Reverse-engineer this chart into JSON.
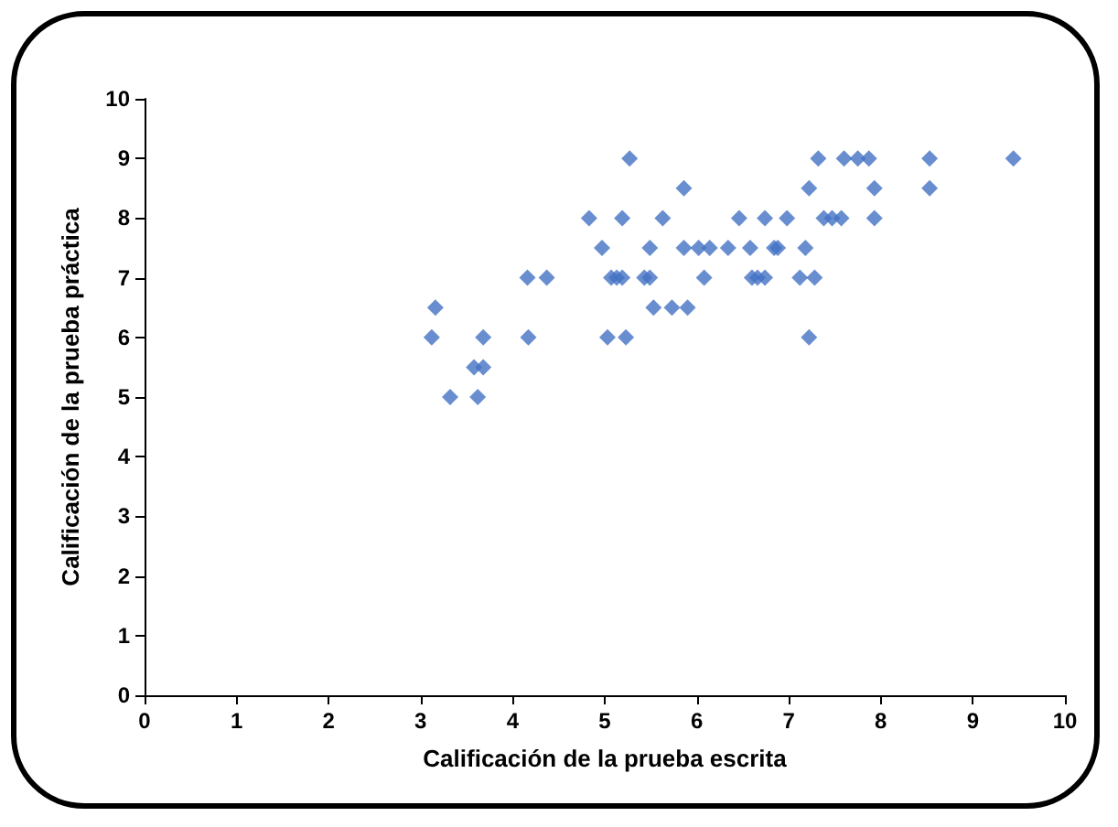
{
  "chart_data": {
    "type": "scatter",
    "xlabel": "Calificación de la prueba escrita",
    "ylabel": "Calificación de la prueba práctica",
    "xlim": [
      0,
      10
    ],
    "xticks": [
      0,
      1,
      2,
      3,
      4,
      5,
      6,
      7,
      8,
      9,
      10
    ],
    "ylim": [
      0,
      10
    ],
    "yticks": [
      0,
      1,
      2,
      3,
      4,
      5,
      6,
      7,
      8,
      9,
      10
    ],
    "grid": false,
    "marker": "diamond",
    "series": [
      {
        "color": "#4472c4",
        "x": [
          5.27,
          7.32,
          7.6,
          7.75,
          7.87,
          8.53,
          9.44,
          5.86,
          7.22,
          7.93,
          8.53,
          4.83,
          5.19,
          5.63,
          6.46,
          6.74,
          6.98,
          7.38,
          7.47,
          7.57,
          7.93,
          4.97,
          5.49,
          5.86,
          6.02,
          6.14,
          6.34,
          6.58,
          6.84,
          6.88,
          7.18,
          4.16,
          4.37,
          5.07,
          5.13,
          5.19,
          5.43,
          5.49,
          6.08,
          6.6,
          6.66,
          6.74,
          7.12,
          7.28,
          3.16,
          5.53,
          5.73,
          5.9,
          3.12,
          3.68,
          4.17,
          5.03,
          5.23,
          7.22,
          3.58,
          3.68,
          3.32,
          3.62
        ],
        "values": [
          9,
          9,
          9,
          9,
          9,
          9,
          9,
          8.5,
          8.5,
          8.5,
          8.5,
          8,
          8,
          8,
          8,
          8,
          8,
          8,
          8,
          8,
          8,
          7.5,
          7.5,
          7.5,
          7.5,
          7.5,
          7.5,
          7.5,
          7.5,
          7.5,
          7.5,
          7,
          7,
          7,
          7,
          7,
          7,
          7,
          7,
          7,
          7,
          7,
          7,
          7,
          6.5,
          6.5,
          6.5,
          6.5,
          6,
          6,
          6,
          6,
          6,
          6,
          5.5,
          5.5,
          5,
          5
        ]
      }
    ]
  }
}
